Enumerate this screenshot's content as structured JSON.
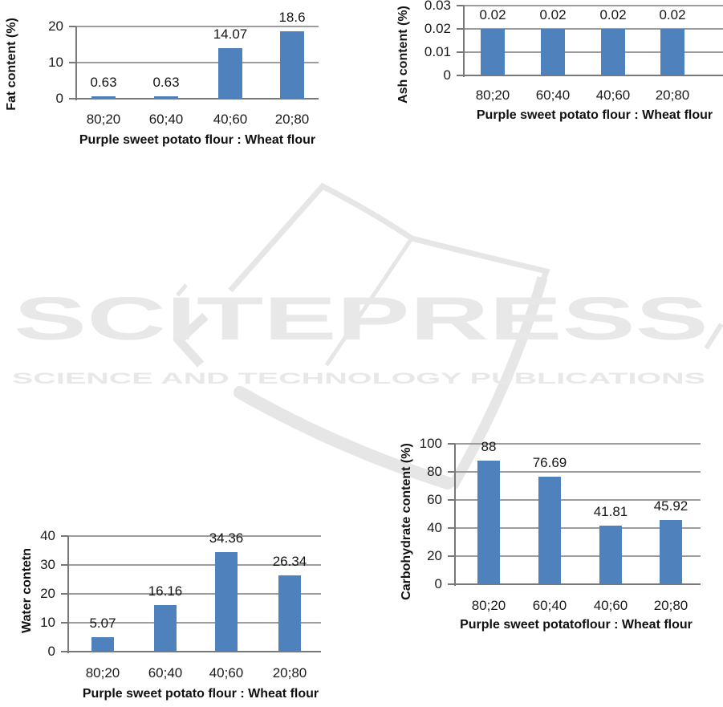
{
  "watermark": {
    "brand": "SCITEPRESS",
    "tagline": "SCIENCE AND TECHNOLOGY PUBLICATIONS",
    "color": "#e8e8e8"
  },
  "styles": {
    "bar_color": "#4f81bd",
    "gridline_color": "#9c9c9c",
    "axis_color": "#787878",
    "text_color": "#1b1b1b"
  },
  "chart_data": [
    {
      "id": "fat-content",
      "type": "bar",
      "ylabel": "Fat content (%)",
      "xlabel": "Purple sweet potato flour : Wheat flour",
      "categories": [
        "80;20",
        "60;40",
        "40;60",
        "20;80"
      ],
      "values": [
        0.63,
        0.63,
        14.07,
        18.6
      ],
      "yticks": [
        0,
        10,
        20
      ],
      "ylim": [
        0,
        20
      ],
      "grid": true,
      "legend": "none",
      "bar_color": "#4f81bd"
    },
    {
      "id": "ash-content",
      "type": "bar",
      "ylabel": "Ash content (%)",
      "xlabel": "Purple sweet potato flour : Wheat flour",
      "categories": [
        "80;20",
        "60;40",
        "40;60",
        "20;80"
      ],
      "values": [
        0.02,
        0.02,
        0.02,
        0.02
      ],
      "yticks": [
        0,
        0.01,
        0.02,
        0.03
      ],
      "ylim": [
        0,
        0.03
      ],
      "grid": true,
      "legend": "none",
      "bar_color": "#4f81bd"
    },
    {
      "id": "water-content",
      "type": "bar",
      "ylabel": "Water contetn",
      "xlabel": "Purple sweet potato flour : Wheat flour",
      "categories": [
        "80;20",
        "60;40",
        "40;60",
        "20;80"
      ],
      "values": [
        5.07,
        16.16,
        34.36,
        26.34
      ],
      "yticks": [
        0,
        10,
        20,
        30,
        40
      ],
      "ylim": [
        0,
        40
      ],
      "grid": true,
      "legend": "none",
      "bar_color": "#4f81bd"
    },
    {
      "id": "carbohydrate-content",
      "type": "bar",
      "ylabel": "Carbohydrate content (%)",
      "xlabel": "Purple sweet potatoflour : Wheat flour",
      "categories": [
        "80;20",
        "60;40",
        "40;60",
        "20;80"
      ],
      "values": [
        88,
        76.69,
        41.81,
        45.92
      ],
      "yticks": [
        0,
        20,
        40,
        60,
        80,
        100
      ],
      "ylim": [
        0,
        100
      ],
      "grid": true,
      "legend": "none",
      "bar_color": "#4f81bd"
    }
  ]
}
